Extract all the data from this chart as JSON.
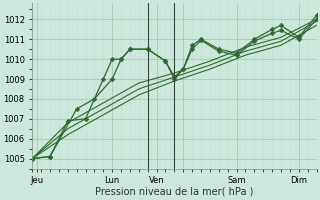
{
  "background_color": "#cce8dc",
  "grid_color_major": "#a8c8b8",
  "grid_color_minor": "#c0dcd0",
  "line_color": "#2d6a2d",
  "title": "",
  "xlabel": "Pression niveau de la mer( hPa )",
  "ylim": [
    1004.5,
    1012.8
  ],
  "yticks": [
    1005,
    1006,
    1007,
    1008,
    1009,
    1010,
    1011,
    1012
  ],
  "xlim": [
    0,
    32
  ],
  "xtick_labels_pos": [
    0.5,
    9,
    14,
    17,
    23,
    30
  ],
  "xtick_labels": [
    "Jeu",
    "Lun",
    "Ven",
    "",
    "Sam",
    "Dim"
  ],
  "vline_positions": [
    13,
    16
  ],
  "vline_color": "#444444",
  "series": [
    {
      "x": [
        0,
        2,
        4,
        6,
        8,
        9,
        10,
        11,
        13,
        15,
        16,
        17,
        18,
        19,
        21,
        23,
        25,
        27,
        28,
        30,
        32
      ],
      "y": [
        1005.0,
        1005.1,
        1006.9,
        1007.0,
        1009.0,
        1010.0,
        1010.0,
        1010.5,
        1010.5,
        1009.9,
        1009.0,
        1009.5,
        1010.7,
        1011.0,
        1010.5,
        1010.3,
        1011.0,
        1011.5,
        1011.7,
        1011.1,
        1012.2
      ],
      "marker": "D",
      "ms": 2.5,
      "lw": 0.9
    },
    {
      "x": [
        0,
        2,
        5,
        7,
        9,
        10,
        11,
        13,
        15,
        16,
        17,
        18,
        19,
        21,
        23,
        25,
        27,
        28,
        30,
        32
      ],
      "y": [
        1005.0,
        1005.1,
        1007.5,
        1008.0,
        1009.0,
        1010.0,
        1010.5,
        1010.5,
        1009.9,
        1009.1,
        1009.5,
        1010.5,
        1010.95,
        1010.4,
        1010.2,
        1010.9,
        1011.3,
        1011.45,
        1011.0,
        1012.0
      ],
      "marker": "D",
      "ms": 2.5,
      "lw": 0.9
    },
    {
      "x": [
        0,
        4,
        8,
        12,
        16,
        20,
        24,
        28,
        32
      ],
      "y": [
        1005.0,
        1006.8,
        1007.8,
        1008.8,
        1009.3,
        1009.9,
        1010.6,
        1011.1,
        1012.0
      ],
      "marker": null,
      "ms": 0,
      "lw": 0.8
    },
    {
      "x": [
        0,
        4,
        8,
        12,
        16,
        20,
        24,
        28,
        32
      ],
      "y": [
        1005.0,
        1006.5,
        1007.5,
        1008.5,
        1009.1,
        1009.7,
        1010.4,
        1010.9,
        1011.9
      ],
      "marker": null,
      "ms": 0,
      "lw": 0.8
    },
    {
      "x": [
        0,
        4,
        8,
        12,
        16,
        20,
        24,
        28,
        32
      ],
      "y": [
        1005.0,
        1006.2,
        1007.2,
        1008.2,
        1008.9,
        1009.5,
        1010.2,
        1010.7,
        1011.7
      ],
      "marker": null,
      "ms": 0,
      "lw": 0.8
    }
  ],
  "xlabel_fontsize": 7,
  "tick_fontsize": 6
}
